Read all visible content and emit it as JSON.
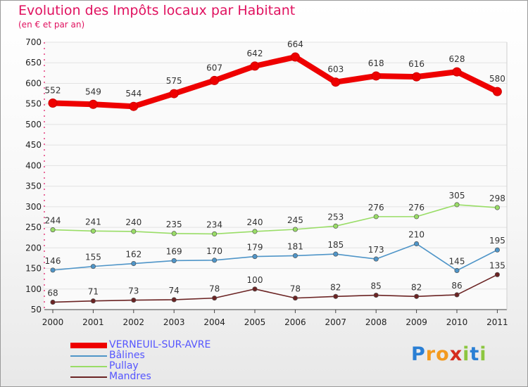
{
  "title": "Evolution des Impôts locaux par Habitant",
  "subtitle": "(en € et par an)",
  "logo": [
    "P",
    "r",
    "o",
    "x",
    "i",
    "t",
    "i"
  ],
  "chart_data": {
    "type": "line",
    "title": "Evolution des Impôts locaux par Habitant",
    "subtitle": "(en € et par an)",
    "xlabel": "",
    "ylabel": "",
    "ylim": [
      50,
      700
    ],
    "yticks": [
      50,
      100,
      150,
      200,
      250,
      300,
      350,
      400,
      450,
      500,
      550,
      600,
      650,
      700
    ],
    "categories": [
      "2000",
      "2001",
      "2002",
      "2003",
      "2004",
      "2005",
      "2006",
      "2007",
      "2008",
      "2009",
      "2010",
      "2011"
    ],
    "series": [
      {
        "name": "VERNEUIL-SUR-AVRE",
        "color": "#ee0000",
        "values": [
          552,
          549,
          544,
          575,
          607,
          642,
          664,
          603,
          618,
          616,
          628,
          580
        ]
      },
      {
        "name": "Bâlines",
        "color": "#4f95c8",
        "values": [
          146,
          155,
          162,
          169,
          170,
          179,
          181,
          185,
          173,
          210,
          145,
          195
        ]
      },
      {
        "name": "Pullay",
        "color": "#99dd66",
        "values": [
          244,
          241,
          240,
          235,
          234,
          240,
          245,
          253,
          276,
          276,
          305,
          298
        ]
      },
      {
        "name": "Mandres",
        "color": "#6b2323",
        "values": [
          68,
          71,
          73,
          74,
          78,
          100,
          78,
          82,
          85,
          82,
          86,
          135
        ]
      }
    ]
  }
}
